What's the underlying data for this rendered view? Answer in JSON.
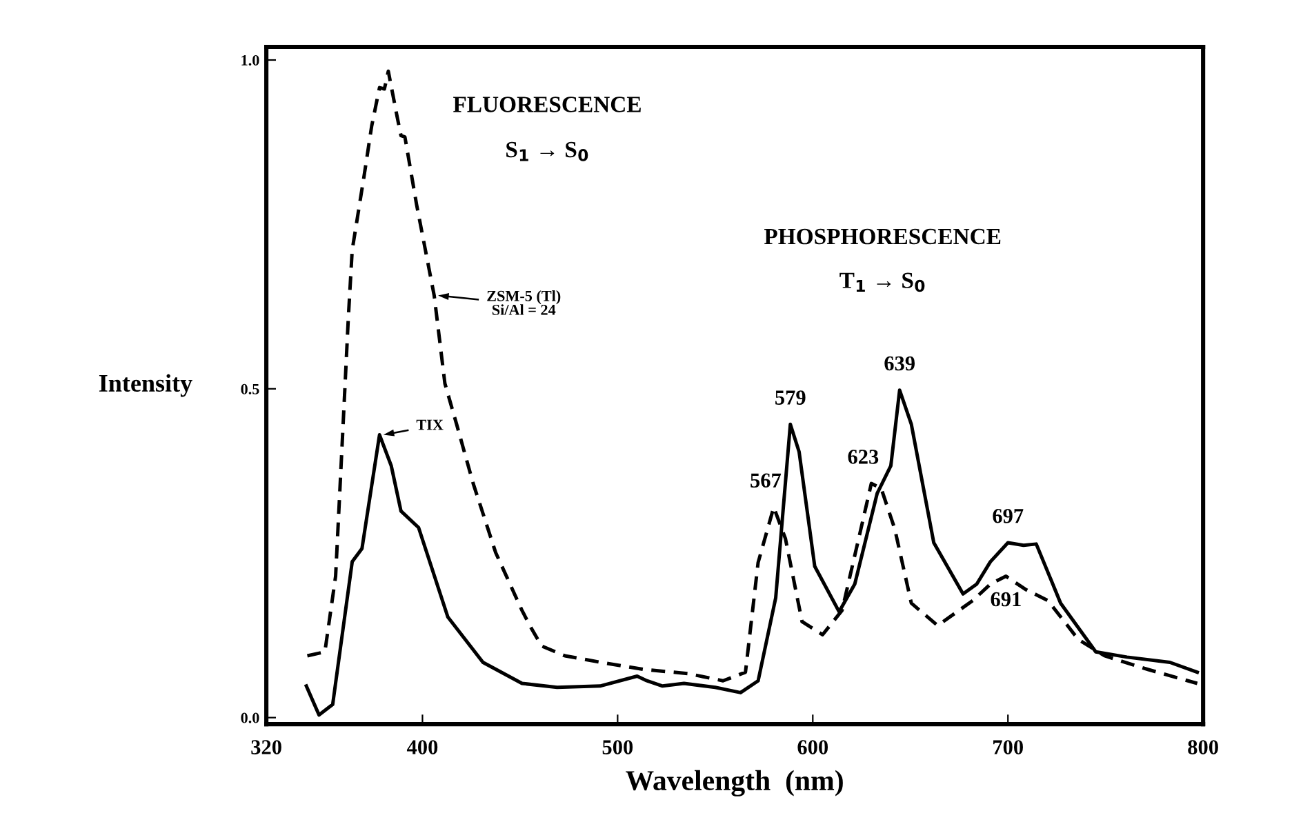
{
  "chart_data": {
    "type": "line",
    "xlabel": "Wavelength  (nm)",
    "ylabel": "Intensity",
    "xlim": [
      320,
      800
    ],
    "xticks": [
      320,
      400,
      500,
      600,
      700,
      800
    ],
    "ylim": [
      -0.01,
      1.02
    ],
    "yticks": [
      {
        "value": 0,
        "label": "0.0"
      },
      0.5,
      {
        "value": 1,
        "label": "1.0"
      }
    ],
    "grid": false,
    "marker": "none",
    "legend": "left",
    "series": [
      {
        "name": "ZSM-5 (Tl)\nSi/Al = 24",
        "color": "#000000",
        "line_style": "dashed",
        "x": [
          341,
          350,
          355.5,
          359,
          362,
          364,
          370,
          374,
          378,
          380.5,
          382.5,
          387,
          389,
          391,
          397,
          406,
          411.5,
          417.5,
          426,
          437.5,
          451,
          455,
          461,
          473,
          491.5,
          514,
          536,
          554,
          565.5,
          572,
          580,
          586,
          594.5,
          605,
          615,
          623.5,
          630,
          635,
          642,
          650.5,
          664,
          682,
          691,
          699,
          709,
          720.5,
          736,
          749.5,
          772,
          797
        ],
        "values": [
          0.094,
          0.1,
          0.215,
          0.425,
          0.607,
          0.711,
          0.822,
          0.9,
          0.958,
          0.956,
          0.983,
          0.914,
          0.885,
          0.883,
          0.78,
          0.642,
          0.508,
          0.446,
          0.356,
          0.251,
          0.163,
          0.14,
          0.109,
          0.094,
          0.084,
          0.073,
          0.067,
          0.056,
          0.069,
          0.236,
          0.32,
          0.272,
          0.146,
          0.126,
          0.163,
          0.272,
          0.356,
          0.349,
          0.287,
          0.174,
          0.14,
          0.178,
          0.203,
          0.215,
          0.195,
          0.178,
          0.119,
          0.094,
          0.073,
          0.052
        ]
      },
      {
        "name": "TIX",
        "color": "#000000",
        "line_style": "solid",
        "x": [
          340.5,
          347,
          354,
          364,
          369,
          378,
          384,
          389,
          398,
          413,
          431,
          451,
          469,
          491,
          510,
          515,
          523,
          534,
          550,
          563,
          572,
          581,
          588.5,
          593,
          601,
          613.5,
          621.5,
          633,
          640,
          644.5,
          650.5,
          662,
          677,
          684,
          691,
          700,
          708,
          714.5,
          727,
          745,
          761,
          783,
          797
        ],
        "values": [
          0.048,
          0.004,
          0.02,
          0.237,
          0.257,
          0.43,
          0.383,
          0.314,
          0.289,
          0.153,
          0.084,
          0.052,
          0.046,
          0.048,
          0.063,
          0.056,
          0.048,
          0.052,
          0.046,
          0.038,
          0.056,
          0.182,
          0.446,
          0.404,
          0.23,
          0.161,
          0.203,
          0.341,
          0.383,
          0.498,
          0.446,
          0.266,
          0.188,
          0.203,
          0.237,
          0.266,
          0.262,
          0.264,
          0.174,
          0.1,
          0.092,
          0.084,
          0.069
        ]
      }
    ],
    "annotations": [
      "FLUORESCENCE",
      "S$_{1}$ → S$_{0}$",
      "PHOSPHORESCENCE",
      "T$_{1}$ → S$_{0}$",
      {
        "text": "579",
        "x": 588.5,
        "y": 0.446
      },
      {
        "text": "567",
        "x": 580,
        "y": 0.32
      },
      {
        "text": "623",
        "x": 630,
        "y": 0.356
      },
      {
        "text": "639",
        "x": 644.5,
        "y": 0.498
      },
      {
        "text": "697",
        "x": 700,
        "y": 0.266
      },
      {
        "text": "691",
        "x": 699,
        "y": 0.215
      }
    ]
  }
}
